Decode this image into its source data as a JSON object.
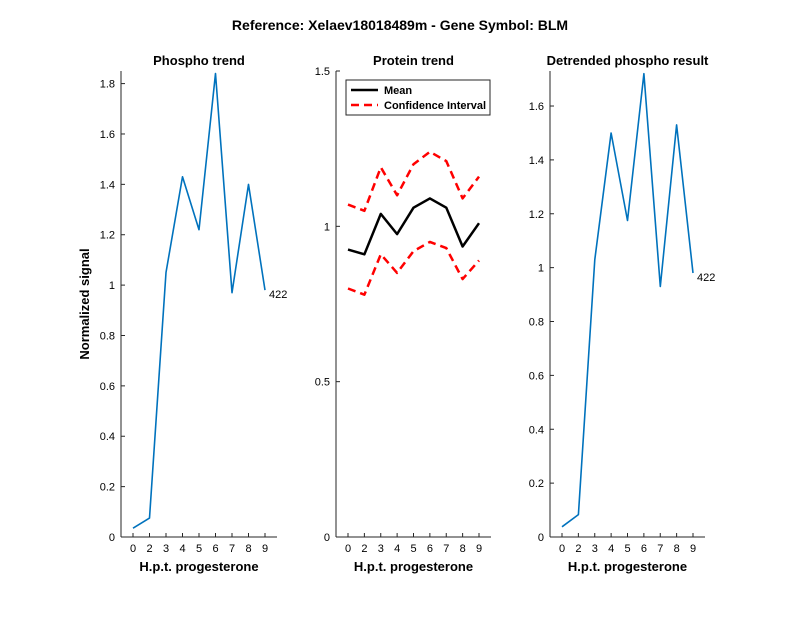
{
  "figure": {
    "suptitle": "Reference:  Xelaev18018489m - Gene Symbol:  BLM"
  },
  "chart_data": [
    {
      "type": "line",
      "title": "Phospho trend",
      "xlabel": "H.p.t. progesterone",
      "ylabel": "Normalized signal",
      "x": [
        0,
        2,
        3,
        4,
        5,
        6,
        7,
        8,
        9
      ],
      "xticks": [
        "0",
        "2",
        "3",
        "4",
        "5",
        "6",
        "7",
        "8",
        "9"
      ],
      "ylim": [
        0,
        1.85
      ],
      "yticks": [
        0,
        0.2,
        0.4,
        0.6,
        0.8,
        1,
        1.2,
        1.4,
        1.6,
        1.8
      ],
      "ytick_labels": [
        "0",
        "0.2",
        "0.4",
        "0.6",
        "0.8",
        "1",
        "1.2",
        "1.4",
        "1.6",
        "1.8"
      ],
      "series": [
        {
          "name": "Phospho",
          "color": "#0072BD",
          "dash": "solid",
          "values": [
            0.035,
            0.075,
            1.05,
            1.43,
            1.22,
            1.84,
            0.97,
            1.4,
            0.98
          ]
        }
      ],
      "end_label": "422"
    },
    {
      "type": "line",
      "title": "Protein trend",
      "xlabel": "H.p.t. progesterone",
      "ylabel": "",
      "x": [
        0,
        2,
        3,
        4,
        5,
        6,
        7,
        8,
        9
      ],
      "xticks": [
        "0",
        "2",
        "3",
        "4",
        "5",
        "6",
        "7",
        "8",
        "9"
      ],
      "ylim": [
        0,
        1.5
      ],
      "yticks": [
        0,
        0.5,
        1,
        1.5
      ],
      "ytick_labels": [
        "0",
        "0.5",
        "1",
        "1.5"
      ],
      "series": [
        {
          "name": "Mean",
          "color": "#000000",
          "dash": "solid",
          "values": [
            0.925,
            0.91,
            1.04,
            0.975,
            1.06,
            1.09,
            1.06,
            0.935,
            1.01
          ]
        },
        {
          "name": "Confidence Interval",
          "color": "#FF0000",
          "dash": "dashed",
          "values": [
            1.07,
            1.05,
            1.19,
            1.1,
            1.2,
            1.24,
            1.21,
            1.09,
            1.16
          ]
        },
        {
          "name": "",
          "color": "#FF0000",
          "dash": "dashed",
          "values": [
            0.8,
            0.78,
            0.91,
            0.85,
            0.92,
            0.95,
            0.93,
            0.83,
            0.89
          ]
        }
      ],
      "legend": {
        "position": "top-left",
        "entries": [
          {
            "label": "Mean",
            "color": "#000000",
            "dash": "solid"
          },
          {
            "label": "Confidence Interval",
            "color": "#FF0000",
            "dash": "dashed"
          }
        ]
      }
    },
    {
      "type": "line",
      "title": "Detrended phospho result",
      "xlabel": "H.p.t. progesterone",
      "ylabel": "",
      "x": [
        0,
        2,
        3,
        4,
        5,
        6,
        7,
        8,
        9
      ],
      "xticks": [
        "0",
        "2",
        "3",
        "4",
        "5",
        "6",
        "7",
        "8",
        "9"
      ],
      "ylim": [
        0,
        1.73
      ],
      "yticks": [
        0,
        0.2,
        0.4,
        0.6,
        0.8,
        1,
        1.2,
        1.4,
        1.6
      ],
      "ytick_labels": [
        "0",
        "0.2",
        "0.4",
        "0.6",
        "0.8",
        "1",
        "1.2",
        "1.4",
        "1.6"
      ],
      "series": [
        {
          "name": "Detrended",
          "color": "#0072BD",
          "dash": "solid",
          "values": [
            0.038,
            0.083,
            1.03,
            1.5,
            1.175,
            1.72,
            0.93,
            1.53,
            0.98
          ]
        }
      ],
      "end_label": "422"
    }
  ]
}
